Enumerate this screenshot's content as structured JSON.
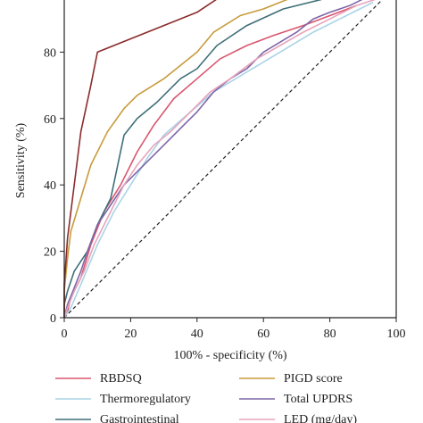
{
  "chart_data": {
    "type": "line",
    "title": "",
    "xlabel": "100% - specificity (%)",
    "ylabel": "Sensitivity (%)",
    "xlim": [
      0,
      100
    ],
    "ylim": [
      0,
      100
    ],
    "x_ticks": [
      "0",
      "20",
      "40",
      "60",
      "80",
      "100"
    ],
    "y_ticks": [
      "0",
      "20",
      "40",
      "60",
      "80"
    ],
    "grid": false,
    "legend_position": "bottom",
    "reference_line": {
      "style": "dashed",
      "color": "#222222",
      "from": [
        0,
        0
      ],
      "to": [
        100,
        100
      ]
    },
    "series": [
      {
        "name": "RBDSQ",
        "color": "#d9566e",
        "points": [
          [
            0,
            0
          ],
          [
            1,
            2
          ],
          [
            2,
            6
          ],
          [
            5,
            12
          ],
          [
            8,
            22
          ],
          [
            12,
            32
          ],
          [
            17,
            40
          ],
          [
            22,
            50
          ],
          [
            27,
            58
          ],
          [
            33,
            66
          ],
          [
            40,
            72
          ],
          [
            47,
            78
          ],
          [
            55,
            82
          ],
          [
            63,
            85
          ],
          [
            72,
            88
          ],
          [
            80,
            91
          ],
          [
            88,
            94
          ]
        ]
      },
      {
        "name": "Thermoregulatory",
        "color": "#a9d4e6",
        "points": [
          [
            0,
            0
          ],
          [
            2,
            3
          ],
          [
            5,
            10
          ],
          [
            10,
            22
          ],
          [
            15,
            32
          ],
          [
            20,
            40
          ],
          [
            25,
            48
          ],
          [
            30,
            55
          ],
          [
            38,
            62
          ],
          [
            45,
            68
          ],
          [
            55,
            74
          ],
          [
            65,
            80
          ],
          [
            75,
            86
          ],
          [
            85,
            91
          ],
          [
            93,
            95
          ]
        ]
      },
      {
        "name": "Gastrointestinal",
        "color": "#3f6f78",
        "points": [
          [
            0,
            0
          ],
          [
            0,
            4
          ],
          [
            1,
            8
          ],
          [
            3,
            14
          ],
          [
            7,
            20
          ],
          [
            10,
            28
          ],
          [
            14,
            36
          ],
          [
            18,
            55
          ],
          [
            22,
            60
          ],
          [
            28,
            65
          ],
          [
            35,
            72
          ],
          [
            40,
            75
          ],
          [
            46,
            82
          ],
          [
            55,
            88
          ],
          [
            66,
            93
          ],
          [
            78,
            96
          ]
        ]
      },
      {
        "name": "PIGD score",
        "color": "#c79b3c",
        "points": [
          [
            0,
            0
          ],
          [
            0,
            8
          ],
          [
            1,
            18
          ],
          [
            2,
            26
          ],
          [
            5,
            36
          ],
          [
            8,
            46
          ],
          [
            13,
            56
          ],
          [
            18,
            63
          ],
          [
            22,
            67
          ],
          [
            30,
            72
          ],
          [
            40,
            80
          ],
          [
            45,
            86
          ],
          [
            53,
            91
          ],
          [
            60,
            93
          ],
          [
            70,
            97
          ]
        ]
      },
      {
        "name": "Total UPDRS",
        "color": "#7e66a8",
        "points": [
          [
            0,
            0
          ],
          [
            1,
            4
          ],
          [
            3,
            9
          ],
          [
            5,
            14
          ],
          [
            7,
            20
          ],
          [
            10,
            28
          ],
          [
            14,
            34
          ],
          [
            18,
            40
          ],
          [
            22,
            44
          ],
          [
            26,
            48
          ],
          [
            30,
            52
          ],
          [
            36,
            58
          ],
          [
            40,
            62
          ],
          [
            45,
            68
          ],
          [
            50,
            72
          ],
          [
            55,
            75
          ],
          [
            60,
            80
          ],
          [
            70,
            86
          ],
          [
            75,
            90
          ],
          [
            80,
            92
          ],
          [
            86,
            94
          ],
          [
            90,
            96
          ]
        ]
      },
      {
        "name": "LED (mg/day)",
        "color": "#e6a4bc",
        "points": [
          [
            0,
            0
          ],
          [
            1,
            3
          ],
          [
            3,
            8
          ],
          [
            6,
            14
          ],
          [
            9,
            22
          ],
          [
            13,
            30
          ],
          [
            18,
            40
          ],
          [
            22,
            46
          ],
          [
            27,
            52
          ],
          [
            32,
            56
          ],
          [
            38,
            62
          ],
          [
            44,
            68
          ],
          [
            50,
            72
          ],
          [
            58,
            78
          ],
          [
            65,
            82
          ],
          [
            72,
            86
          ],
          [
            80,
            90
          ],
          [
            88,
            94
          ],
          [
            94,
            96
          ]
        ]
      },
      {
        "name": "",
        "color": "#8b2b2b",
        "points": [
          [
            0,
            0
          ],
          [
            0,
            10
          ],
          [
            1,
            24
          ],
          [
            3,
            40
          ],
          [
            5,
            56
          ],
          [
            8,
            70
          ],
          [
            10,
            80
          ],
          [
            20,
            84
          ],
          [
            30,
            88
          ],
          [
            40,
            92
          ],
          [
            46,
            96
          ]
        ]
      }
    ]
  }
}
